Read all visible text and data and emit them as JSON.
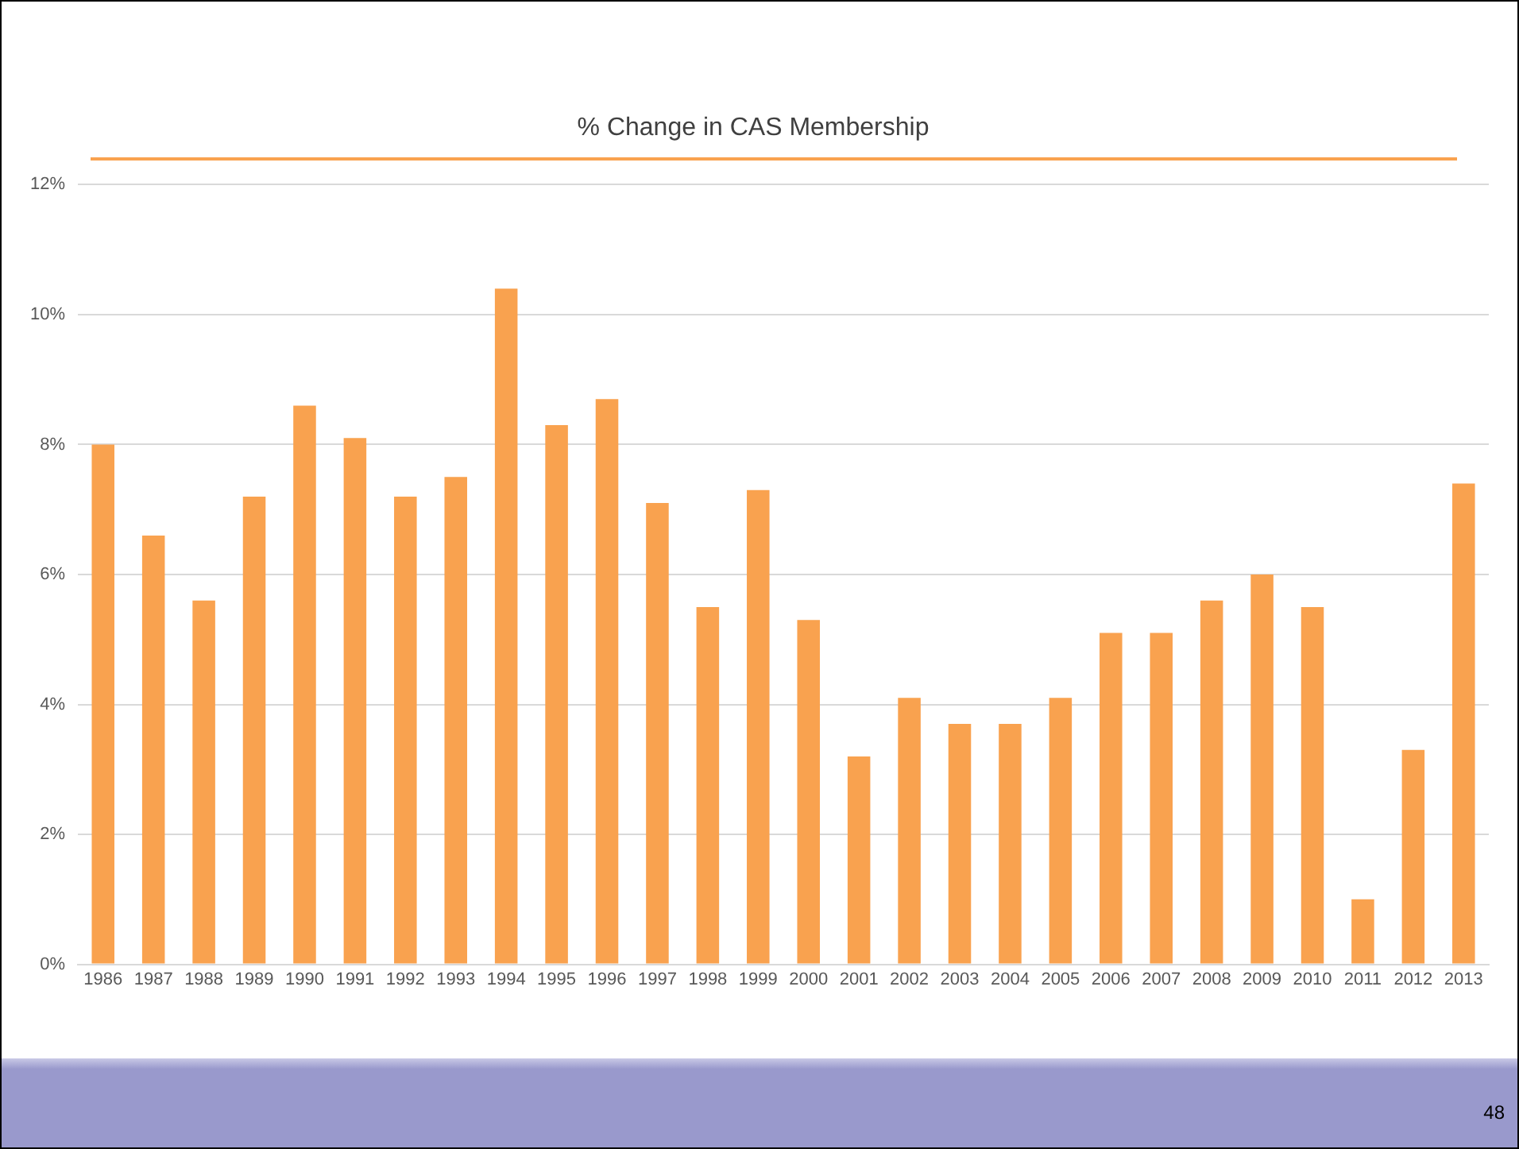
{
  "chart_data": {
    "type": "bar",
    "title": "% Change in CAS Membership",
    "categories": [
      "1986",
      "1987",
      "1988",
      "1989",
      "1990",
      "1991",
      "1992",
      "1993",
      "1994",
      "1995",
      "1996",
      "1997",
      "1998",
      "1999",
      "2000",
      "2001",
      "2002",
      "2003",
      "2004",
      "2005",
      "2006",
      "2007",
      "2008",
      "2009",
      "2010",
      "2011",
      "2012",
      "2013"
    ],
    "values": [
      8.0,
      6.6,
      5.6,
      7.2,
      8.6,
      8.1,
      7.2,
      7.5,
      10.4,
      8.3,
      8.7,
      7.1,
      5.5,
      7.3,
      5.3,
      3.2,
      4.1,
      3.7,
      3.7,
      4.1,
      5.1,
      5.1,
      5.6,
      6.0,
      5.5,
      1.0,
      3.3,
      7.4
    ],
    "color": "#f9a24f",
    "ylim": [
      0,
      12
    ],
    "yticks": [
      {
        "value": 0,
        "label": "0%"
      },
      {
        "value": 2,
        "label": "2%"
      },
      {
        "value": 4,
        "label": "4%"
      },
      {
        "value": 6,
        "label": "6%"
      },
      {
        "value": 8,
        "label": "8%"
      },
      {
        "value": 10,
        "label": "10%"
      },
      {
        "value": 12,
        "label": "12%"
      }
    ],
    "grid": "y",
    "legend": false,
    "annotations": [
      "48"
    ]
  }
}
